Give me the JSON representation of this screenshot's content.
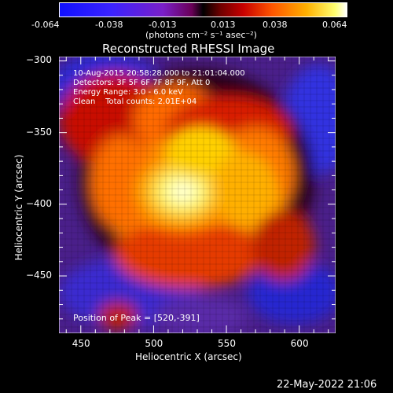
{
  "colorbar": {
    "ticks": [
      "-0.064",
      "-0.038",
      "-0.013",
      "0.013",
      "0.038",
      "0.064"
    ],
    "unit_label": "(photons cm⁻² s⁻¹ asec⁻²)",
    "range": [
      -0.064,
      0.064
    ]
  },
  "plot": {
    "title": "Reconstructed RHESSI Image",
    "info_line1": "10-Aug-2015 20:58:28.000 to 21:01:04.000",
    "info_line2": "Detectors: 3F 5F 6F 7F 8F 9F, Att 0",
    "info_line3": "Energy Range: 3.0 - 6.0 keV",
    "info_line4": "Clean    Total counts: 2.01E+04",
    "peak_label": "Position of Peak = [520,-391]",
    "footer_date": "22-May-2022 21:06"
  },
  "chart_data": {
    "type": "heatmap",
    "title": "Reconstructed RHESSI Image",
    "xlabel": "Heliocentric X (arcsec)",
    "ylabel": "Heliocentric Y (arcsec)",
    "xlim": [
      435,
      625
    ],
    "ylim": [
      -490,
      -297
    ],
    "x_ticks": [
      450,
      500,
      550,
      600
    ],
    "y_ticks": [
      -300,
      -350,
      -400,
      -450
    ],
    "x_tick_labels": [
      "450",
      "500",
      "550",
      "600"
    ],
    "y_tick_labels": [
      "−300",
      "−350",
      "−400",
      "−450"
    ],
    "peak_position": [
      520,
      -391
    ],
    "colormap": "hot-centered-diverging",
    "value_range": [
      -0.064,
      0.064
    ]
  }
}
